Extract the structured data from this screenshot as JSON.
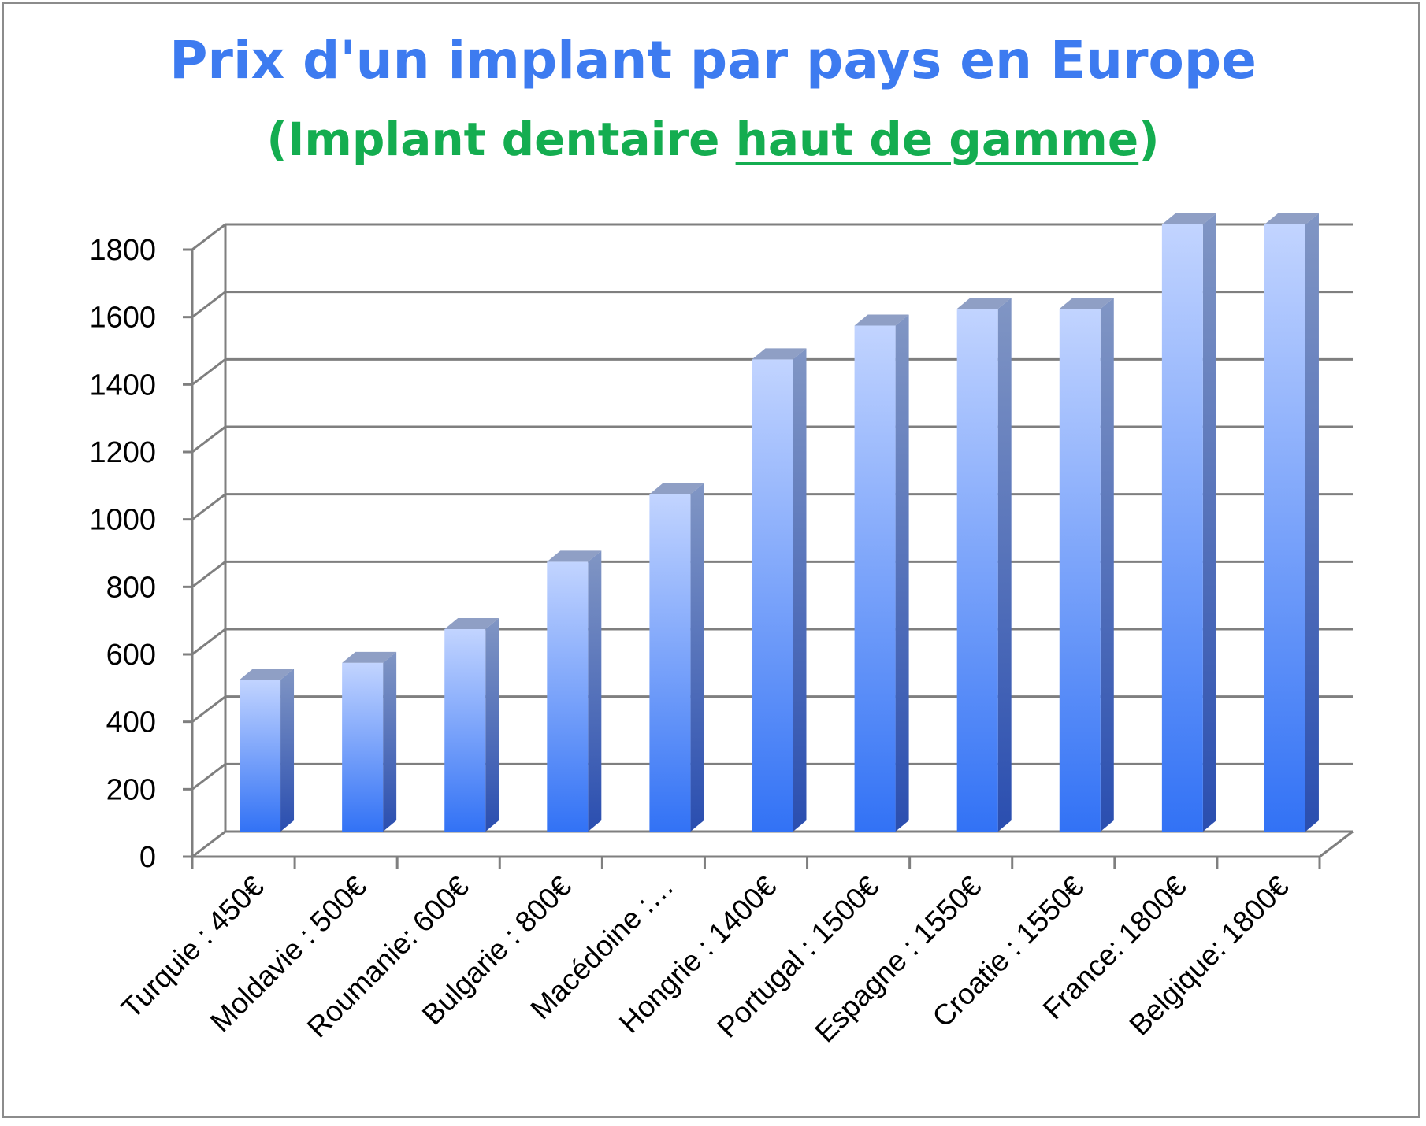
{
  "chart_data": {
    "type": "bar",
    "title": "Prix d'un implant par pays en Europe",
    "subtitle": {
      "open": "(Implant dentaire ",
      "emphasis": "haut de gamme",
      "close": ")"
    },
    "categories": [
      "Turquie : 450€",
      "Moldavie : 500€",
      "Roumanie: 600€",
      "Bulgarie : 800€",
      "Macédoine :…",
      "Hongrie : 1400€",
      "Portugal : 1500€",
      "Espagne : 1550€",
      "Croatie : 1550€",
      "France: 1800€",
      "Belgique: 1800€"
    ],
    "values": [
      450,
      500,
      600,
      800,
      1000,
      1400,
      1500,
      1550,
      1550,
      1800,
      1800
    ],
    "ylim": [
      0,
      1800
    ],
    "yticks": [
      0,
      200,
      400,
      600,
      800,
      1000,
      1200,
      1400,
      1600,
      1800
    ],
    "xlabel": "",
    "ylabel": "",
    "grid": true,
    "legend": "none",
    "style": "3d-column",
    "colors": {
      "bar_top": "#c2d4ff",
      "bar_bottom": "#3272f5",
      "bar_side_top": "#8196c4",
      "bar_side_bottom": "#2a4eb0",
      "bar_cap": "#8f9fc5",
      "gridline": "#7f7f7f",
      "title": "#3d7bf0",
      "subtitle": "#14ad50"
    }
  }
}
